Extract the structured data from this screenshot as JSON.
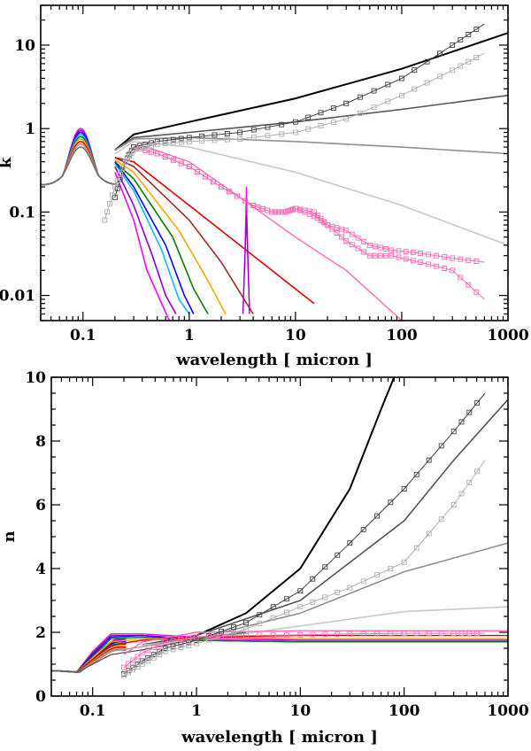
{
  "chart_data": [
    {
      "type": "line",
      "xscale": "log",
      "yscale": "log",
      "xlabel": "wavelength [ micron ]",
      "ylabel": "k",
      "xlim": [
        0.04,
        1000
      ],
      "ylim": [
        0.005,
        30
      ],
      "x_ticks": [
        {
          "v": 0.1,
          "label": "0.1"
        },
        {
          "v": 1,
          "label": "1"
        },
        {
          "v": 10,
          "label": "10"
        },
        {
          "v": 100,
          "label": "100"
        },
        {
          "v": 1000,
          "label": "1000"
        }
      ],
      "y_ticks": [
        {
          "v": 0.01,
          "label": "0.01"
        },
        {
          "v": 0.1,
          "label": "0.1"
        },
        {
          "v": 1,
          "label": "1"
        },
        {
          "v": 10,
          "label": "10"
        }
      ],
      "uv_colors": [
        "#ff00ff",
        "#9400d3",
        "#0000ff",
        "#00bfff",
        "#008000",
        "#ffa500",
        "#ff0000",
        "#a0a0a0",
        "#707070"
      ],
      "series": [
        {
          "name": "black",
          "color": "#000000",
          "width": 2,
          "x": [
            0.2,
            0.3,
            1,
            10,
            100,
            1000
          ],
          "y": [
            0.55,
            0.85,
            1.2,
            2.3,
            5.2,
            14
          ]
        },
        {
          "name": "dark grey",
          "color": "#555555",
          "width": 1.6,
          "x": [
            0.2,
            0.3,
            1,
            10,
            100,
            1000
          ],
          "y": [
            0.55,
            0.78,
            0.9,
            1.2,
            1.7,
            2.5
          ]
        },
        {
          "name": "grey",
          "color": "#909090",
          "width": 1.6,
          "x": [
            0.2,
            0.3,
            1,
            10,
            100,
            1000
          ],
          "y": [
            0.55,
            0.75,
            0.78,
            0.7,
            0.6,
            0.5
          ]
        },
        {
          "name": "light grey",
          "color": "#c8c8c8",
          "width": 1.6,
          "x": [
            0.2,
            0.3,
            1,
            10,
            100,
            1000
          ],
          "y": [
            0.5,
            0.7,
            0.6,
            0.3,
            0.12,
            0.04
          ]
        },
        {
          "name": "pink",
          "color": "#ff69b4",
          "width": 1.4,
          "x": [
            0.25,
            0.4,
            1,
            3,
            10,
            30,
            100
          ],
          "y": [
            0.5,
            0.6,
            0.4,
            0.15,
            0.05,
            0.02,
            0.005
          ]
        },
        {
          "name": "red",
          "color": "#dd0000",
          "width": 1.6,
          "x": [
            0.2,
            0.3,
            1,
            3,
            10,
            15
          ],
          "y": [
            0.45,
            0.4,
            0.12,
            0.04,
            0.012,
            0.008
          ]
        },
        {
          "name": "brown",
          "color": "#a52a2a",
          "width": 1.6,
          "x": [
            0.2,
            0.3,
            1,
            2,
            4
          ],
          "y": [
            0.45,
            0.35,
            0.08,
            0.025,
            0.006
          ]
        },
        {
          "name": "orange",
          "color": "#ffa500",
          "width": 1.6,
          "x": [
            0.2,
            0.3,
            0.8,
            1.5,
            2.2
          ],
          "y": [
            0.42,
            0.3,
            0.06,
            0.015,
            0.006
          ]
        },
        {
          "name": "green",
          "color": "#008000",
          "width": 1.6,
          "x": [
            0.2,
            0.3,
            0.7,
            1.1,
            1.5
          ],
          "y": [
            0.4,
            0.25,
            0.05,
            0.012,
            0.006
          ]
        },
        {
          "name": "blue",
          "color": "#0000ff",
          "width": 1.6,
          "x": [
            0.2,
            0.3,
            0.6,
            0.9,
            1.1
          ],
          "y": [
            0.4,
            0.2,
            0.04,
            0.01,
            0.006
          ]
        },
        {
          "name": "cyan",
          "color": "#00bfff",
          "width": 1.6,
          "x": [
            0.2,
            0.3,
            0.55,
            0.8,
            1.0
          ],
          "y": [
            0.38,
            0.18,
            0.035,
            0.009,
            0.006
          ]
        },
        {
          "name": "violet",
          "color": "#9400d3",
          "width": 1.6,
          "x": [
            0.2,
            0.3,
            0.45,
            0.6,
            0.75
          ],
          "y": [
            0.35,
            0.12,
            0.03,
            0.01,
            0.006
          ]
        },
        {
          "name": "magenta",
          "color": "#ff00ff",
          "width": 1.6,
          "x": [
            0.2,
            0.3,
            0.4,
            0.55,
            0.65
          ],
          "y": [
            0.3,
            0.08,
            0.02,
            0.008,
            0.005
          ]
        },
        {
          "name": "spike red",
          "color": "#dd0000",
          "width": 1.2,
          "x": [
            3.2,
            3.35,
            3.45,
            3.55,
            3.7
          ],
          "y": [
            0.006,
            0.03,
            0.12,
            0.03,
            0.006
          ]
        },
        {
          "name": "spike magenta",
          "color": "#ff00ff",
          "width": 1.2,
          "x": [
            3.2,
            3.35,
            3.45,
            3.55,
            3.7
          ],
          "y": [
            0.006,
            0.04,
            0.2,
            0.04,
            0.006
          ]
        },
        {
          "name": "spike violet",
          "color": "#9400d3",
          "width": 1.2,
          "x": [
            3.2,
            3.35,
            3.45,
            3.55,
            3.7
          ],
          "y": [
            0.006,
            0.03,
            0.09,
            0.03,
            0.006
          ]
        },
        {
          "name": "pink squares A",
          "color": "#ff69b4",
          "width": 1,
          "marker": "square",
          "x": [
            0.3,
            0.5,
            1,
            2,
            4,
            6,
            8,
            10,
            15,
            20,
            30,
            50,
            80,
            150,
            300,
            600
          ],
          "y": [
            0.6,
            0.5,
            0.35,
            0.2,
            0.12,
            0.1,
            0.1,
            0.11,
            0.1,
            0.07,
            0.045,
            0.03,
            0.03,
            0.025,
            0.02,
            0.009
          ]
        },
        {
          "name": "pink squares B",
          "color": "#ff69b4",
          "width": 1,
          "marker": "square",
          "x": [
            0.3,
            0.5,
            1,
            2,
            4,
            6,
            8,
            10,
            15,
            20,
            30,
            50,
            80,
            150,
            300,
            600
          ],
          "y": [
            0.6,
            0.5,
            0.35,
            0.2,
            0.12,
            0.1,
            0.1,
            0.11,
            0.09,
            0.07,
            0.06,
            0.04,
            0.035,
            0.032,
            0.028,
            0.025
          ]
        },
        {
          "name": "dark grey squares",
          "color": "#444444",
          "width": 1,
          "marker": "square",
          "x": [
            0.2,
            0.25,
            0.3,
            0.5,
            1,
            3,
            10,
            30,
            100,
            300,
            600
          ],
          "y": [
            0.15,
            0.4,
            0.6,
            0.7,
            0.78,
            0.9,
            1.2,
            2,
            4,
            10,
            18
          ]
        },
        {
          "name": "light grey squares",
          "color": "#b0b0b0",
          "width": 1,
          "marker": "square",
          "x": [
            0.16,
            0.2,
            0.25,
            0.3,
            0.5,
            1,
            3,
            10,
            30,
            100,
            300,
            600
          ],
          "y": [
            0.08,
            0.2,
            0.4,
            0.55,
            0.65,
            0.7,
            0.75,
            0.9,
            1.3,
            2.5,
            5,
            8
          ]
        }
      ]
    },
    {
      "type": "line",
      "xscale": "log",
      "yscale": "linear",
      "xlabel": "wavelength [ micron ]",
      "ylabel": "n",
      "xlim": [
        0.04,
        1000
      ],
      "ylim": [
        0,
        10
      ],
      "x_ticks": [
        {
          "v": 0.1,
          "label": "0.1"
        },
        {
          "v": 1,
          "label": "1"
        },
        {
          "v": 10,
          "label": "10"
        },
        {
          "v": 100,
          "label": "100"
        },
        {
          "v": 1000,
          "label": "1000"
        }
      ],
      "y_ticks": [
        {
          "v": 0,
          "label": "0"
        },
        {
          "v": 2,
          "label": "2"
        },
        {
          "v": 4,
          "label": "4"
        },
        {
          "v": 6,
          "label": "6"
        },
        {
          "v": 8,
          "label": "8"
        },
        {
          "v": 10,
          "label": "10"
        }
      ],
      "uv_colors": [
        "#ff00ff",
        "#9400d3",
        "#0000ff",
        "#00bfff",
        "#008000",
        "#ffa500",
        "#ff0000",
        "#a0a0a0",
        "#707070"
      ],
      "series": [
        {
          "name": "black",
          "color": "#000000",
          "width": 2,
          "x": [
            0.3,
            1,
            3,
            10,
            30,
            60,
            80
          ],
          "y": [
            1.6,
            1.9,
            2.6,
            4.0,
            6.5,
            9.0,
            10.0
          ]
        },
        {
          "name": "dark grey",
          "color": "#555555",
          "width": 1.6,
          "x": [
            0.3,
            1,
            10,
            100,
            300,
            1000
          ],
          "y": [
            1.6,
            1.9,
            3.0,
            5.5,
            7.4,
            9.3
          ]
        },
        {
          "name": "grey",
          "color": "#909090",
          "width": 1.6,
          "x": [
            0.3,
            1,
            10,
            100,
            1000
          ],
          "y": [
            1.6,
            1.8,
            2.6,
            3.9,
            4.8
          ]
        },
        {
          "name": "light grey",
          "color": "#c8c8c8",
          "width": 1.6,
          "x": [
            0.3,
            1,
            10,
            100,
            1000
          ],
          "y": [
            1.6,
            1.75,
            2.2,
            2.65,
            2.8
          ]
        },
        {
          "name": "magenta",
          "color": "#ff00ff",
          "width": 1.4,
          "x": [
            0.04,
            0.07,
            0.1,
            0.15,
            0.3,
            1,
            10,
            100,
            1000
          ],
          "y": [
            0.8,
            0.75,
            1.4,
            1.95,
            1.95,
            1.85,
            1.8,
            1.8,
            1.8
          ]
        },
        {
          "name": "violet",
          "color": "#9400d3",
          "width": 1.4,
          "x": [
            0.04,
            0.07,
            0.1,
            0.15,
            0.3,
            1,
            10,
            100,
            1000
          ],
          "y": [
            0.8,
            0.75,
            1.35,
            1.9,
            1.9,
            1.8,
            1.75,
            1.75,
            1.75
          ]
        },
        {
          "name": "blue",
          "color": "#0000ff",
          "width": 1.4,
          "x": [
            0.04,
            0.07,
            0.1,
            0.15,
            0.3,
            1,
            10,
            100,
            1000
          ],
          "y": [
            0.8,
            0.75,
            1.3,
            1.85,
            1.9,
            1.75,
            1.7,
            1.7,
            1.7
          ]
        },
        {
          "name": "green",
          "color": "#008000",
          "width": 1.4,
          "x": [
            0.04,
            0.07,
            0.1,
            0.15,
            0.3,
            1,
            10,
            100,
            1000
          ],
          "y": [
            0.8,
            0.75,
            1.25,
            1.8,
            1.85,
            1.75,
            1.7,
            1.7,
            1.7
          ]
        },
        {
          "name": "orange",
          "color": "#ffa500",
          "width": 1.4,
          "x": [
            0.04,
            0.07,
            0.1,
            0.15,
            0.3,
            1,
            10,
            100,
            1000
          ],
          "y": [
            0.8,
            0.75,
            1.2,
            1.7,
            1.8,
            1.8,
            1.8,
            1.8,
            1.8
          ]
        },
        {
          "name": "red",
          "color": "#dd0000",
          "width": 1.4,
          "x": [
            0.04,
            0.07,
            0.1,
            0.15,
            0.3,
            1,
            10,
            100,
            1000
          ],
          "y": [
            0.8,
            0.75,
            1.15,
            1.6,
            1.75,
            1.85,
            1.9,
            1.9,
            1.9
          ]
        },
        {
          "name": "grey uv",
          "color": "#a0a0a0",
          "width": 1.4,
          "x": [
            0.04,
            0.07,
            0.1,
            0.15,
            0.3,
            1,
            3
          ],
          "y": [
            0.8,
            0.75,
            1.05,
            1.4,
            1.55,
            1.85,
            2.0
          ]
        },
        {
          "name": "dark uv",
          "color": "#606060",
          "width": 1.4,
          "x": [
            0.04,
            0.07,
            0.1,
            0.15,
            0.3,
            1,
            3
          ],
          "y": [
            0.8,
            0.75,
            1.0,
            1.3,
            1.45,
            1.8,
            2.0
          ]
        },
        {
          "name": "pink",
          "color": "#ff69b4",
          "width": 1.4,
          "x": [
            0.2,
            0.3,
            1,
            10,
            100,
            1000
          ],
          "y": [
            1.3,
            1.7,
            2.0,
            2.05,
            2.05,
            2.05
          ]
        },
        {
          "name": "dark grey squares",
          "color": "#444444",
          "width": 1,
          "marker": "square",
          "x": [
            0.2,
            0.3,
            0.5,
            1,
            3,
            10,
            30,
            100,
            300,
            600
          ],
          "y": [
            0.7,
            1.1,
            1.5,
            1.75,
            2.3,
            3.3,
            4.8,
            6.5,
            8.3,
            9.5
          ]
        },
        {
          "name": "light grey squares",
          "color": "#b0b0b0",
          "width": 1,
          "marker": "square",
          "x": [
            0.2,
            0.3,
            0.5,
            1,
            3,
            10,
            30,
            100,
            300,
            600
          ],
          "y": [
            0.65,
            1.0,
            1.4,
            1.65,
            2.1,
            2.8,
            3.4,
            4.2,
            6.0,
            7.4
          ]
        },
        {
          "name": "pink squares",
          "color": "#ff69b4",
          "width": 1,
          "marker": "square",
          "x": [
            0.2,
            0.3,
            0.5,
            1,
            3,
            10,
            30,
            100,
            300,
            600
          ],
          "y": [
            0.9,
            1.35,
            1.7,
            1.85,
            1.9,
            1.92,
            1.95,
            1.97,
            1.97,
            1.97
          ]
        }
      ]
    }
  ]
}
